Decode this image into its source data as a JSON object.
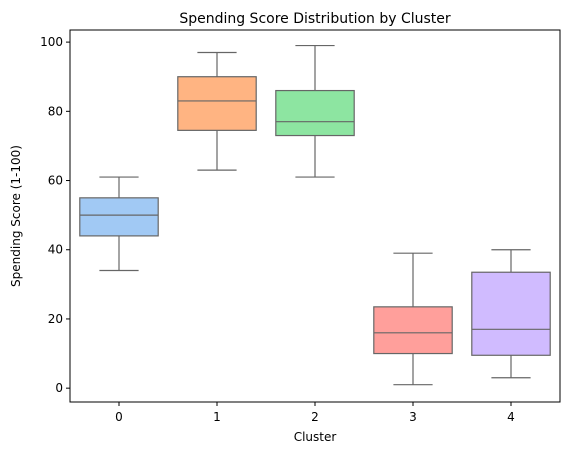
{
  "chart_data": {
    "type": "box",
    "title": "Spending Score Distribution by Cluster",
    "xlabel": "Cluster",
    "ylabel": "Spending Score (1-100)",
    "ylim": [
      -4,
      103.5
    ],
    "yticks": [
      0,
      20,
      40,
      60,
      80,
      100
    ],
    "grid": false,
    "categories": [
      "0",
      "1",
      "2",
      "3",
      "4"
    ],
    "boxes": [
      {
        "category": "0",
        "color": "#a1c9f4",
        "whisker_low": 34,
        "q1": 44,
        "median": 50,
        "q3": 55,
        "whisker_high": 61
      },
      {
        "category": "1",
        "color": "#ffb482",
        "whisker_low": 63,
        "q1": 74.5,
        "median": 83,
        "q3": 90,
        "whisker_high": 97
      },
      {
        "category": "2",
        "color": "#8de5a1",
        "whisker_low": 61,
        "q1": 73,
        "median": 77,
        "q3": 86,
        "whisker_high": 99
      },
      {
        "category": "3",
        "color": "#ff9f9b",
        "whisker_low": 1,
        "q1": 10,
        "median": 16,
        "q3": 23.5,
        "whisker_high": 39
      },
      {
        "category": "4",
        "color": "#d0bbff",
        "whisker_low": 3,
        "q1": 9.5,
        "median": 17,
        "q3": 33.5,
        "whisker_high": 40
      }
    ]
  }
}
